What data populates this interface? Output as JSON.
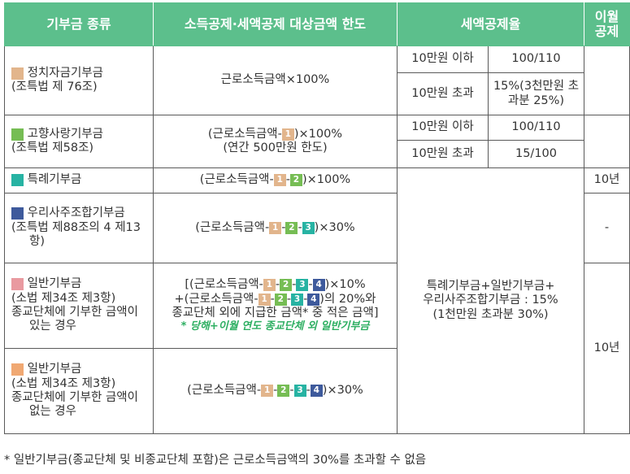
{
  "headers": [
    "기부금 종류",
    "소득공제·세액공제 대상금액 한도",
    "세액공제율",
    "이월\n공제"
  ],
  "row1": {
    "badge": "1",
    "name": "정치자금기부금",
    "law": "(조특법 제 76조)",
    "limit": "근로소득금액×100%",
    "rate_a_label": "10만원 이하",
    "rate_a_value": "100/110",
    "rate_b_label": "10만원 초과",
    "rate_b_value": "15%(3천만원 초과분 25%)"
  },
  "row2": {
    "badge": "2",
    "name": "고향사랑기부금",
    "law": "(조특법 제58조)",
    "limit_pre": "(근로소득금액-",
    "limit_post": ")×100%",
    "limit_line2": "(연간 500만원 한도)",
    "rate_a_label": "10만원 이하",
    "rate_a_value": "100/110",
    "rate_b_label": "10만원 초과",
    "rate_b_value": "15/100"
  },
  "row3": {
    "badge": "3",
    "name": "특례기부금",
    "limit_pre": "(근로소득금액-",
    "limit_post": ")×100%",
    "carry": "10년"
  },
  "row4": {
    "badge": "4",
    "name": "우리사주조합기부금",
    "law": "(조특법 제88조의 4 제13항)",
    "limit_pre": "(근로소득금액-",
    "limit_post": ")×30%",
    "carry": "-"
  },
  "row5": {
    "badge": "5",
    "name": "일반기부금",
    "law": "(소법 제34조 제3항)",
    "desc": "종교단체에 기부한 금액이 있는 경우",
    "limit_l1_pre": "[(근로소득금액-",
    "limit_l1_post": ")×10%",
    "limit_l2_pre": "+(근로소득금액-",
    "limit_l2_post": ")의 20%와",
    "limit_l3": "종교단체 외에 지급한 금액* 중 적은 금액]",
    "limit_note": "* 당해+이월 연도 종교단체 외 일반기부금"
  },
  "row6": {
    "badge": "6",
    "name": "일반기부금",
    "law": "(소법 제34조 제3항)",
    "desc": "종교단체에 기부한 금액이 없는 경우",
    "limit_pre": "(근로소득금액-",
    "limit_post": ")×30%"
  },
  "merged_rate": {
    "line1": "특례기부금+일반기부금+",
    "line2": "우리사주조합기부금 : 15%",
    "line3": "(1천만원 초과분 30%)"
  },
  "carry_56": "10년",
  "footnote": "* 일반기부금(종교단체 및 비종교단체 포함)은 근로소득금액의 30%를 초과할 수 없음",
  "badges": {
    "b1": "1",
    "b2": "2",
    "b3": "3",
    "b4": "4"
  },
  "colors": {
    "header_green": "#5cbf8c",
    "badge1": "#e2b58c",
    "badge2": "#76bd54",
    "badge3": "#27b3a3",
    "badge4": "#3e5a9c",
    "badge5": "#e99aa0",
    "badge6": "#f0a872",
    "note_green": "#2eaf62"
  }
}
